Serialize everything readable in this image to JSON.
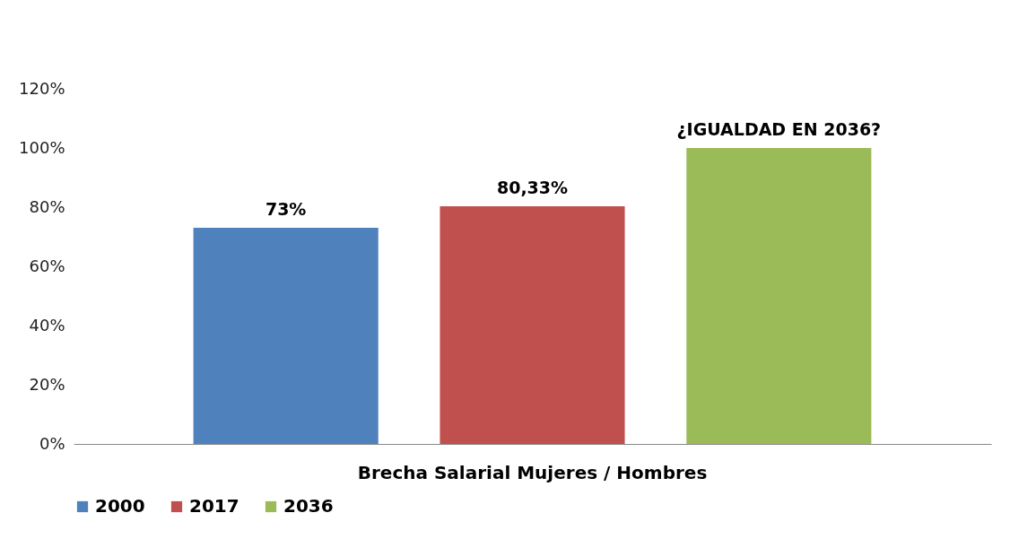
{
  "chart_data": {
    "type": "bar",
    "categories": [
      "Brecha Salarial Mujeres / Hombres"
    ],
    "series": [
      {
        "name": "2000",
        "color": "#4f81bd",
        "values": [
          73
        ],
        "value_labels": [
          "73%"
        ]
      },
      {
        "name": "2017",
        "color": "#c0504d",
        "values": [
          80.33
        ],
        "value_labels": [
          "80,33%"
        ]
      },
      {
        "name": "2036",
        "color": "#9bbb59",
        "values": [
          100
        ],
        "value_labels": [
          "¿IGUALDAD EN 2036?"
        ]
      }
    ],
    "ylim": [
      0,
      120
    ],
    "yticks": [
      {
        "value": 0,
        "label": "0%"
      },
      {
        "value": 20,
        "label": "20%"
      },
      {
        "value": 40,
        "label": "40%"
      },
      {
        "value": 60,
        "label": "60%"
      },
      {
        "value": 80,
        "label": "80%"
      },
      {
        "value": 100,
        "label": "100%"
      },
      {
        "value": 120,
        "label": "120%"
      }
    ],
    "grid": false,
    "legend": "bottom"
  }
}
